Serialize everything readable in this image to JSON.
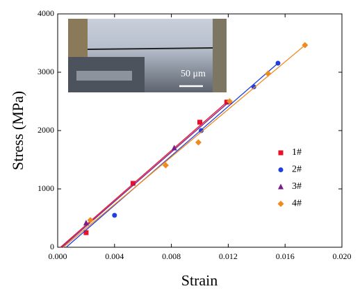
{
  "chart_data": {
    "type": "scatter",
    "x_label": "Strain",
    "y_label": "Stress (MPa)",
    "xlim": [
      0,
      0.02
    ],
    "ylim": [
      0,
      4000
    ],
    "xticks": [
      {
        "value": 0,
        "label": "0.000"
      },
      {
        "value": 0.004,
        "label": "0.004"
      },
      {
        "value": 0.008,
        "label": "0.008"
      },
      {
        "value": 0.012,
        "label": "0.012"
      },
      {
        "value": 0.016,
        "label": "0.016"
      },
      {
        "value": 0.02,
        "label": "0.020"
      }
    ],
    "yticks": [
      0,
      1000,
      2000,
      3000,
      4000
    ],
    "legend": "center right",
    "inset_label": "50 μm",
    "series": [
      {
        "name": "1#",
        "color": "#e8102a",
        "marker": "square",
        "x": [
          0.002,
          0.0053,
          0.01,
          0.0119
        ],
        "values": [
          250,
          1095,
          2143,
          2488
        ],
        "fit_x": [
          0.0002,
          0.0119
        ],
        "fit_y": [
          0,
          2488
        ]
      },
      {
        "name": "2#",
        "color": "#1f3fe0",
        "marker": "circle",
        "x": [
          0.004,
          0.0101,
          0.0138,
          0.0155
        ],
        "values": [
          548,
          2000,
          2750,
          3155
        ],
        "fit_x": [
          0.0006,
          0.0155
        ],
        "fit_y": [
          0,
          3155
        ]
      },
      {
        "name": "3#",
        "color": "#7a1d8a",
        "marker": "triangle",
        "x": [
          0.002,
          0.0082,
          0.0121
        ],
        "values": [
          417,
          1702,
          2500
        ],
        "fit_x": [
          0.0003,
          0.0121
        ],
        "fit_y": [
          0,
          2500
        ]
      },
      {
        "name": "4#",
        "color": "#f08a1c",
        "marker": "diamond",
        "x": [
          0.0023,
          0.0076,
          0.0099,
          0.0121,
          0.0148,
          0.0174
        ],
        "values": [
          464,
          1405,
          1798,
          2500,
          2976,
          3464
        ],
        "fit_x": [
          0.0004,
          0.0174
        ],
        "fit_y": [
          0,
          3464
        ]
      }
    ]
  }
}
